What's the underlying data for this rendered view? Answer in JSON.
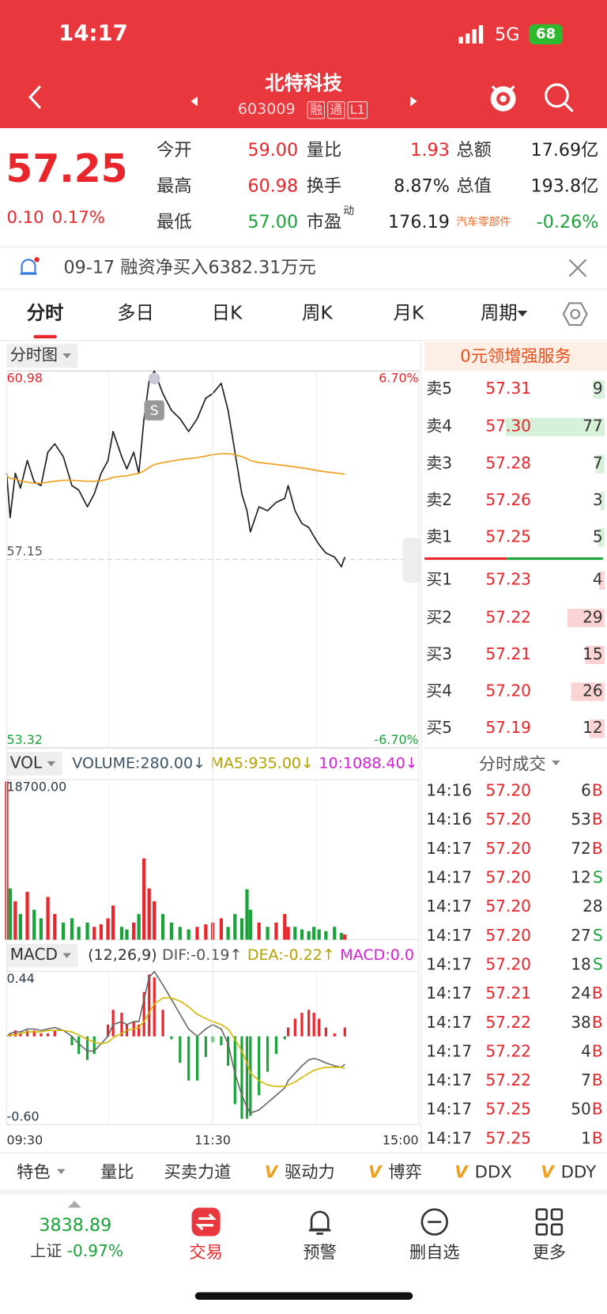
{
  "status_bar": {
    "time": "14:17",
    "network": "5G",
    "battery": "68"
  },
  "header": {
    "title": "北特科技",
    "code": "603009",
    "tags": [
      "融",
      "通",
      "L1"
    ]
  },
  "quote": {
    "price": "57.25",
    "change": "0.10",
    "change_pct": "0.17%",
    "stats": [
      [
        {
          "label": "今开",
          "value": "59.00",
          "color": "#e8262b"
        },
        {
          "label": "量比",
          "value": "1.93",
          "color": "#e8262b"
        },
        {
          "label": "总额",
          "value": "17.69亿"
        }
      ],
      [
        {
          "label": "最高",
          "value": "60.98",
          "color": "#e8262b"
        },
        {
          "label": "换手",
          "value": "8.87%"
        },
        {
          "label": "总值",
          "value": "193.8亿"
        }
      ],
      [
        {
          "label": "最低",
          "value": "57.00",
          "color": "#1aa33a"
        },
        {
          "label": "市盈",
          "label_sup": "动",
          "value": "176.19"
        },
        {
          "label": "汽车零部件",
          "label_color": "#f06a2a",
          "value": "-0.26%",
          "color": "#1aa33a"
        }
      ]
    ]
  },
  "notice": "09-17 融资净买入6382.31万元",
  "tabs": [
    "分时",
    "多日",
    "日K",
    "周K",
    "月K",
    "周期"
  ],
  "chart_data": [
    {
      "type": "line",
      "menu": "分时图",
      "sessions": [
        [
          "09:30",
          "11:30"
        ],
        [
          "13:00",
          "15:00"
        ]
      ],
      "x": [
        "09:30",
        "09:32",
        "09:35",
        "09:38",
        "09:42",
        "09:46",
        "09:50",
        "09:54",
        "09:58",
        "10:03",
        "10:08",
        "10:12",
        "10:17",
        "10:21",
        "10:25",
        "10:29",
        "10:32",
        "10:37",
        "10:40",
        "10:44",
        "10:47",
        "10:50",
        "10:53",
        "10:56",
        "11:01",
        "11:06",
        "11:11",
        "11:16",
        "11:21",
        "11:26",
        "11:30",
        "13:05",
        "13:09",
        "13:13",
        "13:17",
        "13:20",
        "13:22",
        "13:27",
        "13:32",
        "13:37",
        "13:42",
        "13:44",
        "13:48",
        "13:52",
        "13:56",
        "13:59",
        "14:02",
        "14:06",
        "14:11",
        "14:15",
        "14:17"
      ],
      "series": [
        {
          "color": "#222222",
          "values": [
            58.9,
            58.0,
            58.9,
            58.6,
            59.16,
            58.73,
            58.65,
            59.33,
            59.5,
            59.24,
            58.65,
            58.56,
            58.22,
            58.48,
            58.9,
            59.16,
            59.75,
            59.24,
            58.99,
            59.33,
            58.9,
            60.01,
            60.78,
            60.98,
            60.52,
            60.18,
            60.01,
            59.75,
            60.01,
            60.43,
            60.52,
            60.73,
            60.18,
            59.33,
            58.48,
            58.14,
            57.71,
            58.22,
            58.14,
            58.31,
            58.39,
            58.65,
            58.14,
            57.88,
            57.8,
            57.62,
            57.45,
            57.28,
            57.2,
            57.0,
            57.2
          ]
        },
        {
          "color": "#f0a020",
          "values": [
            58.85,
            58.8,
            58.78,
            58.75,
            58.72,
            58.7,
            58.7,
            58.72,
            58.74,
            58.76,
            58.76,
            58.75,
            58.74,
            58.74,
            58.75,
            58.78,
            58.82,
            58.84,
            58.85,
            58.88,
            58.9,
            58.95,
            59.02,
            59.08,
            59.12,
            59.15,
            59.18,
            59.2,
            59.22,
            59.25,
            59.28,
            59.3,
            59.3,
            59.28,
            59.24,
            59.2,
            59.16,
            59.12,
            59.1,
            59.08,
            59.06,
            59.05,
            59.03,
            59.01,
            58.99,
            58.97,
            58.95,
            58.93,
            58.91,
            58.89,
            58.88
          ]
        }
      ],
      "annotations": [
        {
          "x": "10:56",
          "label": "S"
        }
      ],
      "ylim": [
        53.32,
        60.98
      ],
      "yticks": [
        60.98,
        57.15,
        53.32
      ],
      "y2lim": [
        -6.7,
        6.7
      ],
      "y2ticks": [
        {
          "value": 6.7,
          "label": "6.70%"
        },
        {
          "value": -6.7,
          "label": "-6.70%"
        }
      ],
      "up_color": "#e8262b",
      "down_color": "#1aa33a",
      "flat_color": "#555555"
    },
    {
      "type": "bar",
      "menu": "VOL",
      "legend": [
        {
          "text": "VOLUME:280.00↓",
          "color": "#3d5266"
        },
        {
          "text": "MA5:935.00↓",
          "color": "#b5a200"
        },
        {
          "text": "10:1088.40↓",
          "color": "#d21fd2"
        }
      ],
      "values": [
        18500,
        6000,
        4500,
        3000,
        5600,
        3500,
        2500,
        5000,
        3000,
        2000,
        2500,
        1500,
        2000,
        1500,
        1800,
        2500,
        4000,
        1500,
        1200,
        2000,
        3000,
        9500,
        6000,
        4500,
        3000,
        2000,
        1500,
        1200,
        1500,
        1800,
        2000,
        2500,
        1500,
        3000,
        2500,
        5900,
        3500,
        2000,
        1500,
        2000,
        3000,
        1500,
        1500,
        1200,
        1000,
        1500,
        1200,
        1000,
        1500,
        800,
        600
      ],
      "ylim": [
        0,
        18700
      ],
      "yticks": [
        {
          "value": 18700,
          "label": "18700.00"
        }
      ],
      "up_color": "#e8262b",
      "down_color": "#1aa33a"
    },
    {
      "type": "macd",
      "menu": "MACD",
      "legend": [
        {
          "text": "(12,26,9)",
          "color": "#333333"
        },
        {
          "text": "DIF:-0.19↑",
          "color": "#555555"
        },
        {
          "text": "DEA:-0.22↑",
          "color": "#b5a200"
        },
        {
          "text": "MACD:0.0",
          "color": "#d21fd2"
        }
      ],
      "series": [
        {
          "color": "#666666",
          "values": [
            0,
            0.02,
            0.03,
            0.03,
            0.05,
            0.05,
            0.04,
            0.05,
            0.06,
            0.04,
            0.0,
            -0.05,
            -0.1,
            -0.1,
            -0.05,
            0.0,
            0.08,
            0.1,
            0.08,
            0.1,
            0.1,
            0.25,
            0.4,
            0.44,
            0.35,
            0.25,
            0.15,
            0.05,
            0.0,
            0.05,
            0.08,
            0.05,
            -0.05,
            -0.25,
            -0.4,
            -0.48,
            -0.52,
            -0.5,
            -0.45,
            -0.4,
            -0.35,
            -0.3,
            -0.25,
            -0.2,
            -0.16,
            -0.15,
            -0.16,
            -0.18,
            -0.2,
            -0.21,
            -0.19
          ]
        },
        {
          "color": "#d4b800",
          "values": [
            0,
            0.01,
            0.01,
            0.02,
            0.03,
            0.03,
            0.03,
            0.04,
            0.04,
            0.04,
            0.03,
            0.01,
            -0.02,
            -0.04,
            -0.05,
            -0.04,
            -0.01,
            0.02,
            0.04,
            0.05,
            0.06,
            0.1,
            0.16,
            0.22,
            0.26,
            0.26,
            0.24,
            0.2,
            0.15,
            0.12,
            0.1,
            0.08,
            0.05,
            -0.02,
            -0.1,
            -0.18,
            -0.25,
            -0.3,
            -0.33,
            -0.34,
            -0.34,
            -0.33,
            -0.31,
            -0.28,
            -0.25,
            -0.23,
            -0.22,
            -0.21,
            -0.21,
            -0.21,
            -0.22
          ]
        }
      ],
      "histogram": [
        0,
        0.02,
        0.04,
        0.02,
        0.04,
        0.04,
        0.02,
        0.02,
        0.04,
        0,
        -0.06,
        -0.12,
        -0.16,
        -0.12,
        0,
        0.08,
        0.18,
        0.16,
        0.08,
        0.1,
        0.08,
        0.3,
        0.42,
        0.4,
        0.18,
        -0.02,
        -0.18,
        -0.3,
        -0.3,
        -0.14,
        -0.04,
        -0.06,
        -0.2,
        -0.46,
        -0.56,
        -0.56,
        -0.54,
        -0.4,
        -0.24,
        -0.12,
        -0.02,
        0.06,
        0.12,
        0.16,
        0.18,
        0.16,
        0.12,
        0.06,
        0.02,
        0,
        0.06
      ],
      "ylim": [
        -0.6,
        0.44
      ],
      "yticks": [
        0.44,
        {
          "value": -0.6,
          "label": "-0.60"
        }
      ],
      "xticks": [
        "09:30",
        "11:30",
        "15:00"
      ],
      "up_color": "#e8262b",
      "down_color": "#1aa33a"
    }
  ],
  "order_book": {
    "promo": "0元领增强服务",
    "bar_colors": {
      "ask": "#d6f0da",
      "bid": "#fad4d4"
    },
    "asks": [
      {
        "label": "卖5",
        "price": "57.31",
        "volume": 9
      },
      {
        "label": "卖4",
        "price": "57.30",
        "volume": 77
      },
      {
        "label": "卖3",
        "price": "57.28",
        "volume": 7
      },
      {
        "label": "卖2",
        "price": "57.26",
        "volume": 3
      },
      {
        "label": "卖1",
        "price": "57.25",
        "volume": 5
      }
    ],
    "bids": [
      {
        "label": "买1",
        "price": "57.23",
        "volume": 4
      },
      {
        "label": "买2",
        "price": "57.22",
        "volume": 29
      },
      {
        "label": "买3",
        "price": "57.21",
        "volume": 15
      },
      {
        "label": "买4",
        "price": "57.20",
        "volume": 26
      },
      {
        "label": "买5",
        "price": "57.19",
        "volume": 12
      }
    ]
  },
  "trades": {
    "title": "分时成交",
    "side_colors": {
      "B": "#e8262b",
      "S": "#1aa33a"
    },
    "rows": [
      {
        "time": "14:16",
        "price": "57.20",
        "volume": "6",
        "side": "B"
      },
      {
        "time": "14:16",
        "price": "57.20",
        "volume": "53",
        "side": "B"
      },
      {
        "time": "14:17",
        "price": "57.20",
        "volume": "72",
        "side": "B"
      },
      {
        "time": "14:17",
        "price": "57.20",
        "volume": "12",
        "side": "S"
      },
      {
        "time": "14:17",
        "price": "57.20",
        "volume": "28"
      },
      {
        "time": "14:17",
        "price": "57.20",
        "volume": "27",
        "side": "S"
      },
      {
        "time": "14:17",
        "price": "57.20",
        "volume": "18",
        "side": "S"
      },
      {
        "time": "14:17",
        "price": "57.21",
        "volume": "24",
        "side": "B"
      },
      {
        "time": "14:17",
        "price": "57.22",
        "volume": "38",
        "side": "B"
      },
      {
        "time": "14:17",
        "price": "57.22",
        "volume": "4",
        "side": "B"
      },
      {
        "time": "14:17",
        "price": "57.22",
        "volume": "7",
        "side": "B"
      },
      {
        "time": "14:17",
        "price": "57.25",
        "volume": "50",
        "side": "B"
      },
      {
        "time": "14:17",
        "price": "57.25",
        "volume": "1",
        "side": "B"
      }
    ]
  },
  "indicator_bar": [
    {
      "label": "特色"
    },
    {
      "label": "量比"
    },
    {
      "label": "买卖力道"
    },
    {
      "badge": "V",
      "label": "驱动力"
    },
    {
      "badge": "V",
      "label": "博弈"
    },
    {
      "badge": "V",
      "label": "DDX"
    },
    {
      "badge": "V",
      "label": "DDY"
    }
  ],
  "nav": {
    "index": {
      "value": "3838.89",
      "name": "上证",
      "change": "-0.97%"
    },
    "items": [
      "交易",
      "预警",
      "删自选",
      "更多"
    ]
  }
}
